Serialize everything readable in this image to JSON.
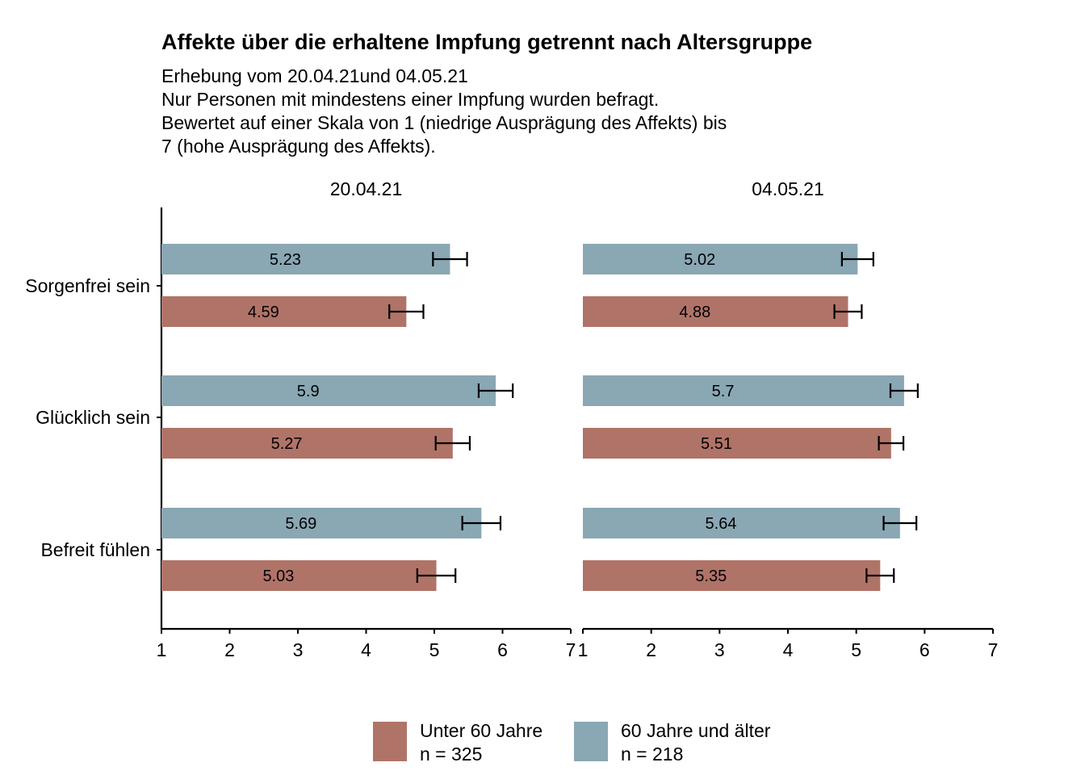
{
  "chart_data": {
    "type": "bar",
    "orientation": "horizontal",
    "title": "Affekte über die erhaltene Impfung getrennt nach Altersgruppe",
    "subtitle": [
      "Erhebung vom 20.04.21und 04.05.21",
      "Nur Personen mit mindestens einer Impfung wurden befragt.",
      "Bewertet auf einer Skala von 1 (niedrige Ausprägung des Affekts) bis",
      "7 (hohe Ausprägung des Affekts)."
    ],
    "categories": [
      "Sorgenfrei sein",
      "Glücklich sein",
      "Befreit fühlen"
    ],
    "xlim": [
      1,
      7
    ],
    "xticks": [
      "1",
      "2",
      "3",
      "4",
      "5",
      "6",
      "7"
    ],
    "legend_position": "bottom",
    "colors": {
      "Unter 60 Jahre": "#b07368",
      "60 Jahre und älter": "#8aa7b4"
    },
    "panels": [
      {
        "label": "20.04.21",
        "series": [
          {
            "name": "60 Jahre und älter",
            "values": [
              5.23,
              5.9,
              5.69
            ],
            "errors": [
              0.25,
              0.25,
              0.28
            ]
          },
          {
            "name": "Unter 60 Jahre",
            "values": [
              4.59,
              5.27,
              5.03
            ],
            "errors": [
              0.25,
              0.25,
              0.28
            ]
          }
        ]
      },
      {
        "label": "04.05.21",
        "series": [
          {
            "name": "60 Jahre und älter",
            "values": [
              5.02,
              5.7,
              5.64
            ],
            "errors": [
              0.23,
              0.2,
              0.24
            ]
          },
          {
            "name": "Unter 60 Jahre",
            "values": [
              4.88,
              5.51,
              5.35
            ],
            "errors": [
              0.2,
              0.18,
              0.2
            ]
          }
        ]
      }
    ],
    "legend": [
      {
        "name": "Unter 60 Jahre",
        "n": "n = 325"
      },
      {
        "name": "60 Jahre und älter",
        "n": "n = 218"
      }
    ]
  }
}
